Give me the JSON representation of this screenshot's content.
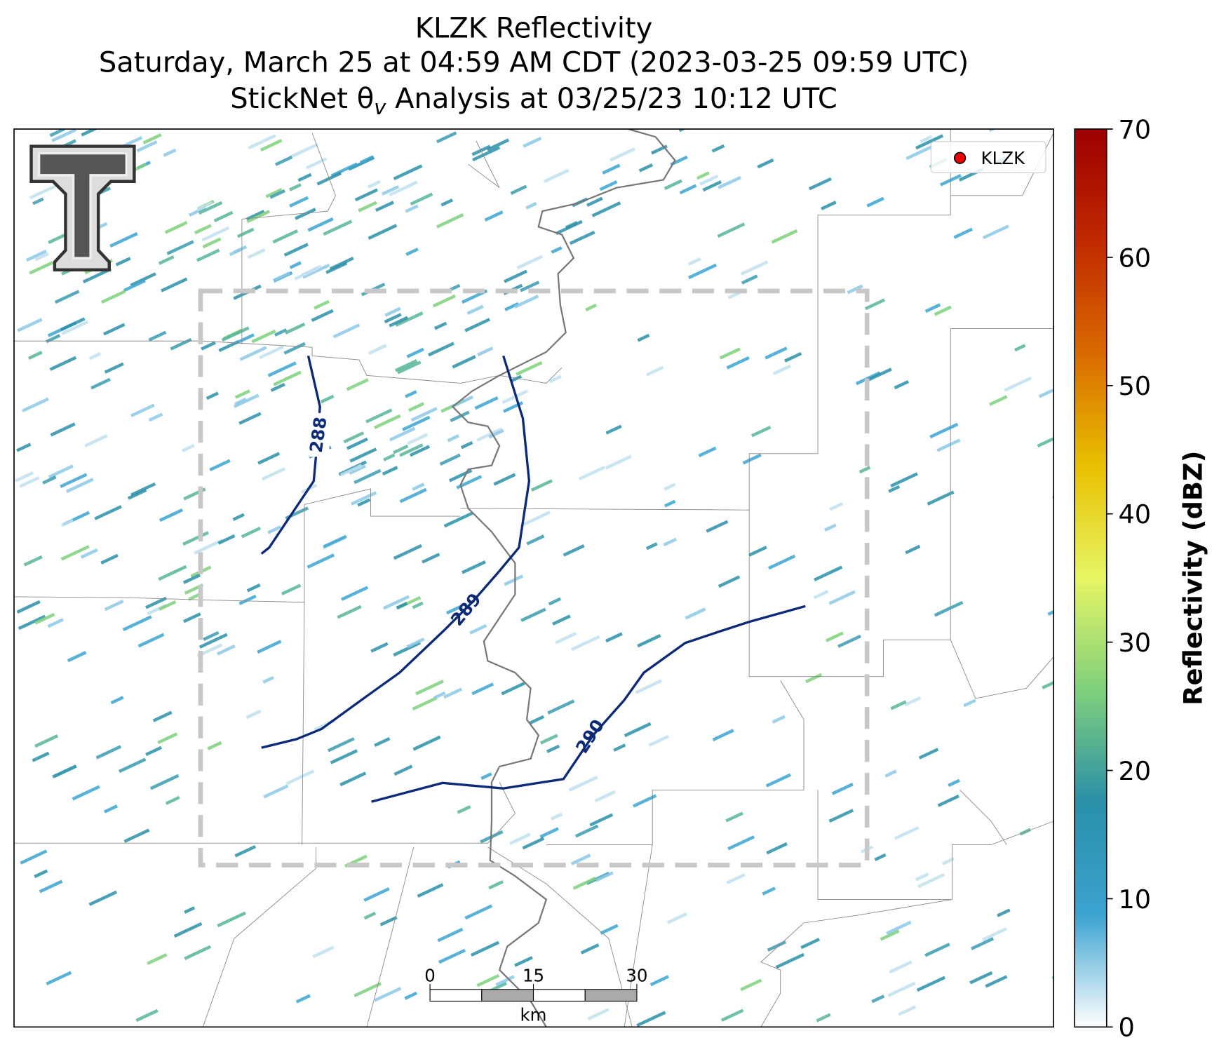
{
  "title": {
    "line1": "KLZK Reflectivity",
    "line2": "Saturday, March 25 at 04:59 AM CDT (2023-03-25 09:59 UTC)",
    "line3": {
      "before": "StickNet θ",
      "sub": "v",
      "after": " Analysis at 03/25/23 10:12 UTC"
    }
  },
  "legend": [
    "KLZK"
  ],
  "contours": [
    {
      "label": "288"
    },
    {
      "label": "289"
    },
    {
      "label": "290"
    }
  ],
  "scale_bar": {
    "ticks": [
      0,
      15,
      30
    ],
    "unit": "km"
  },
  "colorbar": {
    "label": "Reflectivity (dBZ)",
    "lim": [
      0,
      70
    ],
    "ticks": [
      0,
      10,
      20,
      30,
      40,
      50,
      60,
      70
    ],
    "colors": [
      "#ffffff",
      "#3ba3d0",
      "#2a8fa8",
      "#7fd07c",
      "#e6f564",
      "#e8c000",
      "#d96a00",
      "#c02a00",
      "#9c0000"
    ]
  }
}
